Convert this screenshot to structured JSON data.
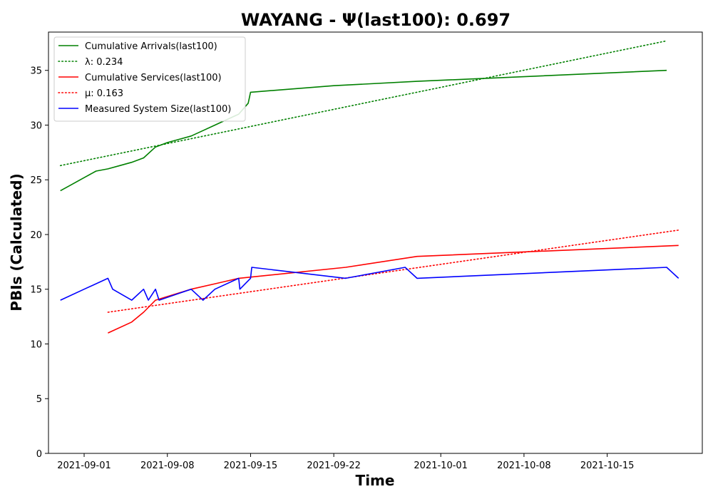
{
  "chart_data": {
    "type": "line",
    "title": "WAYANG -  Ψ(last100): 0.697",
    "xlabel": "Time",
    "ylabel": "PBIs (Calculated)",
    "xlim": [
      "2021-08-29",
      "2021-10-23"
    ],
    "ylim": [
      0,
      38.5
    ],
    "x_ticks": [
      "2021-09-01",
      "2021-09-08",
      "2021-09-15",
      "2021-09-22",
      "2021-10-01",
      "2021-10-08",
      "2021-10-15"
    ],
    "y_ticks": [
      0,
      5,
      10,
      15,
      20,
      25,
      30,
      35
    ],
    "grid": false,
    "legend_position": "upper left",
    "series": [
      {
        "name": "Cumulative Arrivals(last100)",
        "color": "#008000",
        "style": "solid",
        "points": [
          [
            "2021-08-30",
            24
          ],
          [
            "2021-08-31",
            24.6
          ],
          [
            "2021-09-01",
            25.2
          ],
          [
            "2021-09-02",
            25.8
          ],
          [
            "2021-09-03",
            26
          ],
          [
            "2021-09-04",
            26.3
          ],
          [
            "2021-09-05",
            26.6
          ],
          [
            "2021-09-06",
            27
          ],
          [
            "2021-09-07",
            28
          ],
          [
            "2021-09-08",
            28.4
          ],
          [
            "2021-09-09",
            28.7
          ],
          [
            "2021-09-10",
            29
          ],
          [
            "2021-09-11",
            29.5
          ],
          [
            "2021-09-12",
            30
          ],
          [
            "2021-09-14",
            31
          ],
          [
            "2021-09-14.8",
            32
          ],
          [
            "2021-09-15",
            33
          ],
          [
            "2021-09-22",
            33.6
          ],
          [
            "2021-09-29",
            34
          ],
          [
            "2021-10-20",
            35
          ]
        ]
      },
      {
        "name": "λ: 0.234",
        "color": "#008000",
        "style": "dotted",
        "points": [
          [
            "2021-08-30",
            26.3
          ],
          [
            "2021-10-20",
            37.7
          ]
        ]
      },
      {
        "name": "Cumulative Services(last100)",
        "color": "#ff0000",
        "style": "solid",
        "points": [
          [
            "2021-09-03",
            11
          ],
          [
            "2021-09-05",
            12
          ],
          [
            "2021-09-06",
            12.9
          ],
          [
            "2021-09-07",
            14
          ],
          [
            "2021-09-10",
            15
          ],
          [
            "2021-09-12",
            15.5
          ],
          [
            "2021-09-14",
            16
          ],
          [
            "2021-09-23",
            17
          ],
          [
            "2021-09-29",
            18
          ],
          [
            "2021-10-21",
            19
          ]
        ]
      },
      {
        "name": "μ: 0.163",
        "color": "#ff0000",
        "style": "dotted",
        "points": [
          [
            "2021-09-03",
            12.9
          ],
          [
            "2021-10-21",
            20.4
          ]
        ]
      },
      {
        "name": "Measured System Size(last100)",
        "color": "#0000ff",
        "style": "solid",
        "points": [
          [
            "2021-08-30",
            14
          ],
          [
            "2021-09-01",
            15
          ],
          [
            "2021-09-03",
            16
          ],
          [
            "2021-09-03.4",
            15
          ],
          [
            "2021-09-05",
            14
          ],
          [
            "2021-09-06",
            15
          ],
          [
            "2021-09-06.4",
            14
          ],
          [
            "2021-09-07",
            15
          ],
          [
            "2021-09-07.3",
            14
          ],
          [
            "2021-09-10",
            15
          ],
          [
            "2021-09-11",
            14
          ],
          [
            "2021-09-12",
            15
          ],
          [
            "2021-09-14",
            16
          ],
          [
            "2021-09-14.1",
            15
          ],
          [
            "2021-09-15",
            16
          ],
          [
            "2021-09-15.1",
            17
          ],
          [
            "2021-09-23",
            16
          ],
          [
            "2021-09-28",
            17
          ],
          [
            "2021-09-29",
            16
          ],
          [
            "2021-10-20",
            17
          ],
          [
            "2021-10-21",
            16
          ]
        ]
      }
    ]
  }
}
